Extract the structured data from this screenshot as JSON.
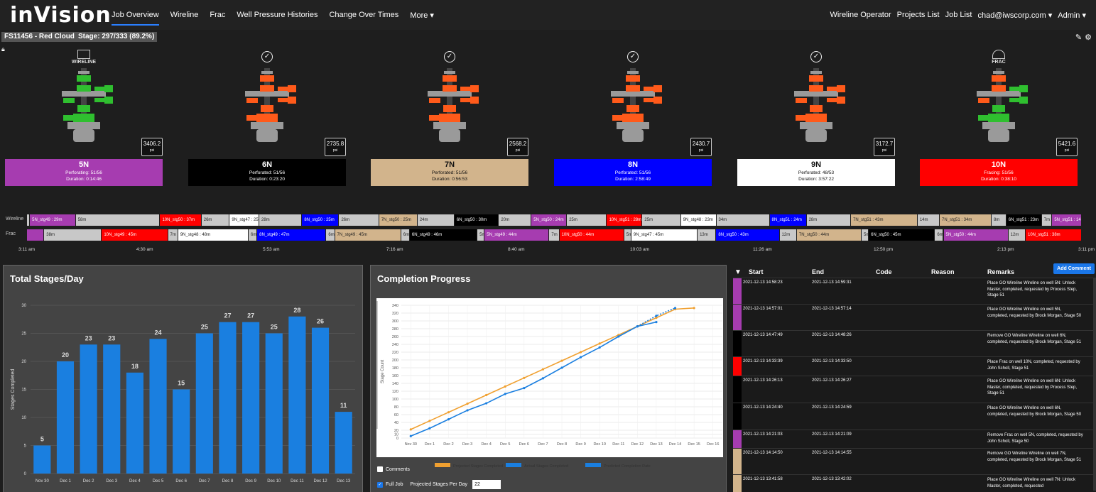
{
  "app": {
    "logo": "inVision"
  },
  "nav": {
    "links": [
      "Job Overview",
      "Wireline",
      "Frac",
      "Well Pressure Histories",
      "Change Over Times",
      "More ▾"
    ],
    "right": [
      "Wireline Operator",
      "Projects List",
      "Job List",
      "chad@iwscorp.com ▾",
      "Admin ▾"
    ]
  },
  "header": {
    "job": "FS11456 - Red Cloud",
    "stage": "Stage: 297/333 (89.2%)"
  },
  "wells": [
    {
      "mode": "WIRELINE",
      "name": "5N",
      "psi": "3406.2",
      "unit": "psi",
      "line1": "Perforating: 51/56",
      "line2": "Duration: 0:14:46",
      "bg": "#a63cb0",
      "fg": "#fff"
    },
    {
      "mode": "",
      "name": "6N",
      "psi": "2735.8",
      "unit": "psi",
      "line1": "Perforated: 51/56",
      "line2": "Duration: 0:23:20",
      "bg": "#000000",
      "fg": "#fff"
    },
    {
      "mode": "",
      "name": "7N",
      "psi": "2568.2",
      "unit": "psi",
      "line1": "Perforated: 51/56",
      "line2": "Duration: 0:56:53",
      "bg": "#d2b48c",
      "fg": "#111"
    },
    {
      "mode": "",
      "name": "8N",
      "psi": "2430.7",
      "unit": "psi",
      "line1": "Perforated: 51/56",
      "line2": "Duration: 2:58:49",
      "bg": "#0000ff",
      "fg": "#fff"
    },
    {
      "mode": "",
      "name": "9N",
      "psi": "3172.7",
      "unit": "psi",
      "line1": "Perforated: 48/53",
      "line2": "Duration: 3:57:22",
      "bg": "#ffffff",
      "fg": "#111"
    },
    {
      "mode": "FRAC",
      "name": "10N",
      "psi": "5421.6",
      "unit": "psi",
      "line1": "Fracing: 51/56",
      "line2": "Duration: 0:38:10",
      "bg": "#ff0000",
      "fg": "#fff"
    }
  ],
  "timeline": {
    "labels": [
      "Wireline",
      "Frac"
    ],
    "wireline": [
      {
        "t": "",
        "c": "#c8c8c8",
        "w": 4
      },
      {
        "t": "5N_stg49 : 29m",
        "c": "#a63cb0",
        "w": 62
      },
      {
        "t": "58m",
        "c": "#c8c8c8",
        "w": 114
      },
      {
        "t": "10N_stg50 : 37m",
        "c": "#ff0000",
        "w": 56
      },
      {
        "t": "26m",
        "c": "#c8c8c8",
        "w": 38
      },
      {
        "t": "9N_stg47 : 25m",
        "c": "#ffffff",
        "w": 40
      },
      {
        "t": "28m",
        "c": "#c8c8c8",
        "w": 58
      },
      {
        "t": "8N_stg50 : 25m",
        "c": "#0000ff",
        "w": 50
      },
      {
        "t": "26m",
        "c": "#c8c8c8",
        "w": 54
      },
      {
        "t": "7N_stg50 : 25m",
        "c": "#d2b48c",
        "w": 52
      },
      {
        "t": "24m",
        "c": "#c8c8c8",
        "w": 50
      },
      {
        "t": "6N_stg50 : 30m",
        "c": "#000000",
        "w": 60
      },
      {
        "t": "20m",
        "c": "#c8c8c8",
        "w": 44
      },
      {
        "t": "5N_stg50 : 24m",
        "c": "#a63cb0",
        "w": 48
      },
      {
        "t": "25m",
        "c": "#c8c8c8",
        "w": 54
      },
      {
        "t": "10N_stg51 : 28m",
        "c": "#ff0000",
        "w": 48
      },
      {
        "t": "25m",
        "c": "#c8c8c8",
        "w": 52
      },
      {
        "t": "9N_stg48 : 23m",
        "c": "#ffffff",
        "w": 48
      },
      {
        "t": "34m",
        "c": "#c8c8c8",
        "w": 72
      },
      {
        "t": "8N_stg51 : 24m",
        "c": "#0000ff",
        "w": 50
      },
      {
        "t": "28m",
        "c": "#c8c8c8",
        "w": 60
      },
      {
        "t": "7N_stg51 : 43m",
        "c": "#d2b48c",
        "w": 90
      },
      {
        "t": "14m",
        "c": "#c8c8c8",
        "w": 30
      },
      {
        "t": "7N_stg51 : 34m",
        "c": "#d2b48c",
        "w": 70
      },
      {
        "t": "8m",
        "c": "#c8c8c8",
        "w": 20
      },
      {
        "t": "6N_stg51 : 23m",
        "c": "#000000",
        "w": 48
      },
      {
        "t": "7m",
        "c": "#c8c8c8",
        "w": 14
      },
      {
        "t": "5N_stg51 : 14m",
        "c": "#a63cb0",
        "w": 40
      }
    ],
    "frac": [
      {
        "t": "",
        "c": "#a63cb0",
        "w": 24
      },
      {
        "t": "38m",
        "c": "#c8c8c8",
        "w": 80
      },
      {
        "t": "10N_stg49 : 45m",
        "c": "#ff0000",
        "w": 92
      },
      {
        "t": "7m",
        "c": "#c8c8c8",
        "w": 14
      },
      {
        "t": "9N_stg48 : 48m",
        "c": "#ffffff",
        "w": 98
      },
      {
        "t": "6m",
        "c": "#c8c8c8",
        "w": 12
      },
      {
        "t": "8N_stg49 : 47m",
        "c": "#0000ff",
        "w": 96
      },
      {
        "t": "6m",
        "c": "#c8c8c8",
        "w": 12
      },
      {
        "t": "7N_stg49 : 45m",
        "c": "#d2b48c",
        "w": 92
      },
      {
        "t": "6m",
        "c": "#c8c8c8",
        "w": 12
      },
      {
        "t": "6N_stg49 : 46m",
        "c": "#000000",
        "w": 94
      },
      {
        "t": "5m",
        "c": "#c8c8c8",
        "w": 10
      },
      {
        "t": "5N_stg49 : 44m",
        "c": "#a63cb0",
        "w": 90
      },
      {
        "t": "7m",
        "c": "#c8c8c8",
        "w": 14
      },
      {
        "t": "10N_stg50 : 44m",
        "c": "#ff0000",
        "w": 90
      },
      {
        "t": "5m",
        "c": "#c8c8c8",
        "w": 10
      },
      {
        "t": "9N_stg47 : 45m",
        "c": "#ffffff",
        "w": 92
      },
      {
        "t": "13m",
        "c": "#c8c8c8",
        "w": 26
      },
      {
        "t": "8N_stg50 : 43m",
        "c": "#0000ff",
        "w": 88
      },
      {
        "t": "12m",
        "c": "#c8c8c8",
        "w": 24
      },
      {
        "t": "7N_stg50 : 44m",
        "c": "#d2b48c",
        "w": 90
      },
      {
        "t": "5m",
        "c": "#c8c8c8",
        "w": 10
      },
      {
        "t": "6N_stg50 : 45m",
        "c": "#000000",
        "w": 92
      },
      {
        "t": "6m",
        "c": "#c8c8c8",
        "w": 12
      },
      {
        "t": "5N_stg50 : 44m",
        "c": "#a63cb0",
        "w": 90
      },
      {
        "t": "12m",
        "c": "#c8c8c8",
        "w": 24
      },
      {
        "t": "10N_stg51 : 38m",
        "c": "#ff0000",
        "w": 78
      }
    ],
    "ticks": [
      "3:11 am",
      "4:30 am",
      "5:53 am",
      "7:16 am",
      "8:40 am",
      "10:03 am",
      "11:26 am",
      "12:50 pm",
      "2:13 pm",
      "3:11 pm"
    ]
  },
  "stages_panel": {
    "title": "Total Stages/Day"
  },
  "progress_panel": {
    "title": "Completion Progress",
    "comments_label": "Comments",
    "fulljob_label": "Full Job",
    "projected_label": "Projected Stages Per Day",
    "projected_value": "22"
  },
  "chart_data": [
    {
      "type": "bar",
      "title": "Total Stages/Day",
      "ylabel": "Stages Completed",
      "ylim": [
        0,
        30
      ],
      "yticks": [
        0,
        5,
        10,
        15,
        20,
        25,
        30
      ],
      "categories": [
        "Nov 30",
        "Dec 1",
        "Dec 2",
        "Dec 3",
        "Dec 4",
        "Dec 5",
        "Dec 6",
        "Dec 7",
        "Dec 8",
        "Dec 9",
        "Dec 10",
        "Dec 11",
        "Dec 12",
        "Dec 13"
      ],
      "values": [
        5,
        20,
        23,
        23,
        18,
        24,
        15,
        25,
        27,
        27,
        25,
        28,
        26,
        11
      ],
      "color": "#1a7fe0",
      "grid": true
    },
    {
      "type": "line",
      "title": "Completion Progress",
      "ylabel": "Stage Count",
      "ylim": [
        0,
        340
      ],
      "yticks": [
        0,
        10,
        20,
        40,
        60,
        80,
        100,
        120,
        140,
        160,
        180,
        200,
        220,
        240,
        260,
        280,
        300,
        320,
        340
      ],
      "categories": [
        "Nov 30",
        "Dec 1",
        "Dec 2",
        "Dec 3",
        "Dec 4",
        "Dec 5",
        "Dec 6",
        "Dec 7",
        "Dec 8",
        "Dec 9",
        "Dec 10",
        "Dec 11",
        "Dec 12",
        "Dec 13",
        "Dec 14",
        "Dec 15",
        "Dec 16"
      ],
      "series": [
        {
          "name": "Projected Stages Completed",
          "color": "#f0a030",
          "values": [
            22,
            44,
            66,
            88,
            110,
            132,
            154,
            176,
            198,
            220,
            242,
            264,
            286,
            308,
            330,
            333,
            null
          ]
        },
        {
          "name": "Actual Stages Completed",
          "color": "#1a7fe0",
          "values": [
            5,
            25,
            48,
            71,
            89,
            113,
            128,
            153,
            180,
            207,
            232,
            260,
            286,
            297,
            null,
            null,
            null
          ]
        },
        {
          "name": "Predicted Completion Rate",
          "color": "#1a7fe0",
          "dashed": true,
          "values": [
            null,
            null,
            null,
            null,
            null,
            null,
            null,
            null,
            null,
            null,
            null,
            null,
            286,
            313,
            333,
            null,
            null
          ]
        }
      ],
      "legend": "bottom",
      "grid": true
    }
  ],
  "table": {
    "columns": [
      "Start",
      "End",
      "Code",
      "Reason",
      "Remarks"
    ],
    "add_label": "Add Comment",
    "rows": [
      {
        "c": "#a63cb0",
        "start": "2021-12-13 14:58:23",
        "end": "2021-12-13 14:59:31",
        "remarks": "Place GO Wireline Wireline on well 5N: Unlock Master, completed, requested by Process Step, Stage 51",
        "h": 37
      },
      {
        "c": "#a63cb0",
        "start": "2021-12-13 14:57:01",
        "end": "2021-12-13 14:57:14",
        "remarks": "Place GO Wireline Wireline on well 5N, completed, requested by Brock Morgan, Stage 50",
        "h": 37
      },
      {
        "c": "#000000",
        "start": "2021-12-13 14:47:49",
        "end": "2021-12-13 14:48:26",
        "remarks": "Remove GO Wireline Wireline on well 6N, completed, requested by Brock Morgan, Stage 51",
        "h": 37
      },
      {
        "c": "#ff0000",
        "start": "2021-12-13 14:33:39",
        "end": "2021-12-13 14:33:50",
        "remarks": "Place Frac on well 10N, completed, requested by John Scholl, Stage 51",
        "h": 27
      },
      {
        "c": "#000000",
        "start": "2021-12-13 14:26:13",
        "end": "2021-12-13 14:26:27",
        "remarks": "Place GO Wireline Wireline on well 6N: Unlock Master, completed, requested by Process Step, Stage 51",
        "h": 38
      },
      {
        "c": "#000000",
        "start": "2021-12-13 14:24:40",
        "end": "2021-12-13 14:24:59",
        "remarks": "Place GO Wireline Wireline on well 6N, completed, requested by Brock Morgan, Stage 50",
        "h": 38
      },
      {
        "c": "#a63cb0",
        "start": "2021-12-13 14:21:03",
        "end": "2021-12-13 14:21:09",
        "remarks": "Remove Frac on well 5N, completed, requested by John Scholl, Stage 50",
        "h": 26
      },
      {
        "c": "#d2b48c",
        "start": "2021-12-13 14:14:50",
        "end": "2021-12-13 14:14:55",
        "remarks": "Remove GO Wireline Wireline on well 7N, completed, requested by Brock Morgan, Stage 51",
        "h": 37
      },
      {
        "c": "#d2b48c",
        "start": "2021-12-13 13:41:58",
        "end": "2021-12-13 13:42:02",
        "remarks": "Place GO Wireline Wireline on well 7N: Unlock Master, completed, requested",
        "h": 30
      }
    ]
  }
}
